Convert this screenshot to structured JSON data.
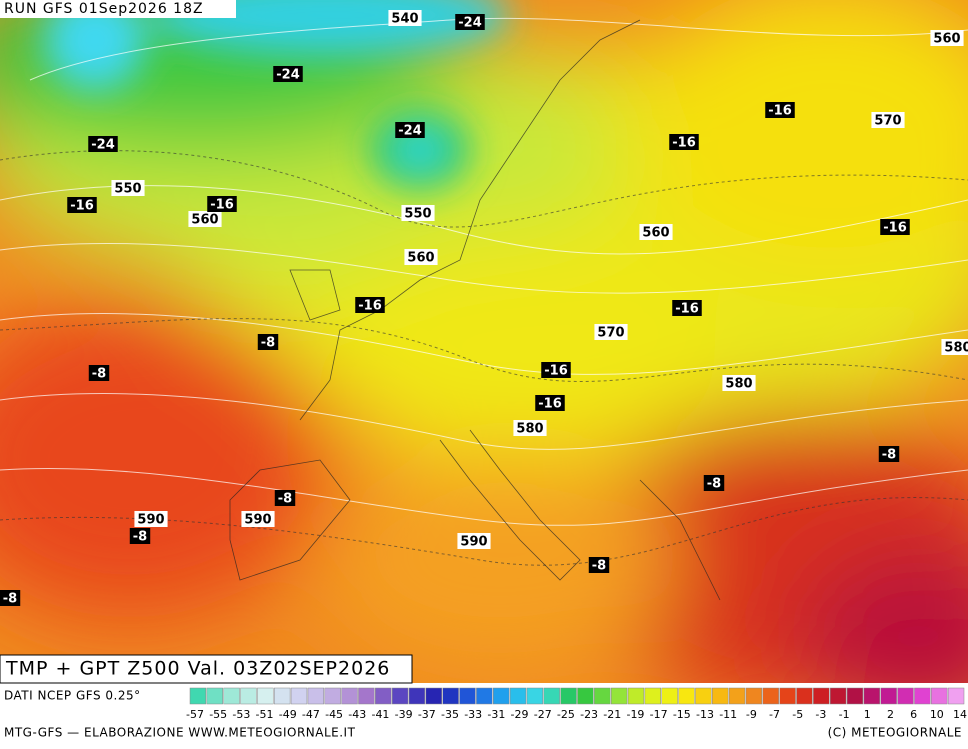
{
  "header": {
    "run": "RUN GFS 01Sep2026 18Z"
  },
  "map": {
    "height_labels": [
      "540",
      "560",
      "570",
      "550",
      "560",
      "550",
      "560",
      "560",
      "570",
      "580",
      "580",
      "580",
      "590",
      "590",
      "590"
    ],
    "temperature_labels": [
      "-24",
      "-24",
      "-24",
      "-24",
      "-16",
      "-16",
      "-16",
      "-16",
      "-16",
      "-16",
      "-16",
      "-16",
      "-16",
      "-8",
      "-8",
      "-8",
      "-8",
      "-8",
      "-8",
      "-8",
      "-8"
    ]
  },
  "footer": {
    "product": "TMP + GPT Z500 Val. 03Z02SEP2026",
    "source": "DATI NCEP GFS 0.25°",
    "scale_labels": [
      "-57",
      "-55",
      "-53",
      "-51",
      "-49",
      "-47",
      "-45",
      "-43",
      "-41",
      "-39",
      "-37",
      "-35",
      "-33",
      "-31",
      "-29",
      "-27",
      "-25",
      "-23",
      "-21",
      "-19",
      "-17",
      "-15",
      "-13",
      "-11",
      "-9",
      "-7",
      "-5",
      "-3",
      "-1",
      "1",
      "2",
      "6",
      "10",
      "14"
    ],
    "credit": "MTG-GFS — ELABORAZIONE WWW.METEOGIORNALE.IT",
    "copyright": "(C) METEOGIORNALE"
  }
}
